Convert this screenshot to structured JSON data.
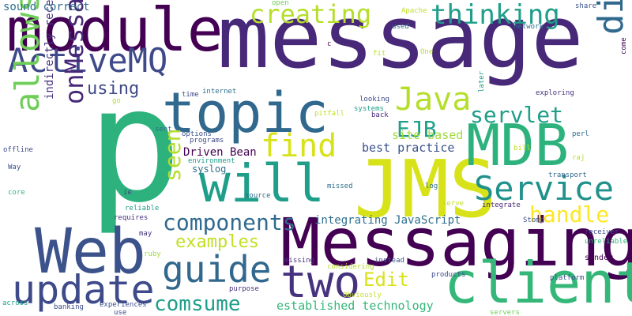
{
  "words": [
    {
      "text": "message",
      "color": "#482878"
    },
    {
      "text": "p",
      "color": "#2db27d"
    },
    {
      "text": "JMS",
      "color": "#d8e219"
    },
    {
      "text": "Messaging",
      "color": "#440154"
    },
    {
      "text": "module",
      "color": "#440154"
    },
    {
      "text": "Web",
      "color": "#3b528b"
    },
    {
      "text": "topic",
      "color": "#31688e"
    },
    {
      "text": "will",
      "color": "#1f9e89"
    },
    {
      "text": "client",
      "color": "#35b779"
    },
    {
      "text": "MDB",
      "color": "#2db27d"
    },
    {
      "text": "ActiveMQ",
      "color": "#3e4a89"
    },
    {
      "text": "two",
      "color": "#46327e"
    },
    {
      "text": "update",
      "color": "#3e4a89"
    },
    {
      "text": "guide",
      "color": "#31688e"
    },
    {
      "text": "Service",
      "color": "#21918c"
    },
    {
      "text": "directly",
      "color": "#31688e"
    },
    {
      "text": "allows",
      "color": "#6ece58"
    },
    {
      "text": "find",
      "color": "#d8e219"
    },
    {
      "text": "Java",
      "color": "#b5de2b"
    },
    {
      "text": "creating",
      "color": "#b5de2b"
    },
    {
      "text": "thinking",
      "color": "#1f9e89"
    },
    {
      "text": "components",
      "color": "#306a8e"
    },
    {
      "text": "comsume",
      "color": "#1f9e89"
    },
    {
      "text": "onMessage",
      "color": "#482878"
    },
    {
      "text": "EJB",
      "color": "#1f9e89"
    },
    {
      "text": "servlet",
      "color": "#1f9e89"
    },
    {
      "text": "handle",
      "color": "#fde725"
    },
    {
      "text": "seen",
      "color": "#b5de2b"
    },
    {
      "text": "examples",
      "color": "#c2df23"
    },
    {
      "text": "Edit",
      "color": "#d8e219"
    },
    {
      "text": "using",
      "color": "#3e4a89"
    },
    {
      "text": "integrating JavaScript",
      "color": "#2e6f8e"
    },
    {
      "text": "established technology",
      "color": "#35b779"
    },
    {
      "text": "site based",
      "color": "#a0da39"
    },
    {
      "text": "best practice",
      "color": "#3b528b"
    },
    {
      "text": "Driven Bean",
      "color": "#440154"
    },
    {
      "text": "sound correct",
      "color": "#2e6f8e"
    },
    {
      "text": "indirectly receive",
      "color": "#46327e"
    },
    {
      "text": "syslog",
      "color": "#2e6f8e"
    },
    {
      "text": "environment",
      "color": "#1f9e89"
    },
    {
      "text": "options",
      "color": "#3b528b"
    },
    {
      "text": "programs",
      "color": "#3e4a89"
    },
    {
      "text": "internet",
      "color": "#2d708e"
    },
    {
      "text": "time",
      "color": "#3e4a89"
    },
    {
      "text": "open",
      "color": "#6ece58"
    },
    {
      "text": "used",
      "color": "#2e6f8e"
    },
    {
      "text": "Apache",
      "color": "#c2df23"
    },
    {
      "text": "network",
      "color": "#2d708e"
    },
    {
      "text": "share",
      "color": "#3b528b"
    },
    {
      "text": "looking",
      "color": "#3e4a89"
    },
    {
      "text": "systems",
      "color": "#1f9e89"
    },
    {
      "text": "pitfall",
      "color": "#c2df23"
    },
    {
      "text": "back",
      "color": "#482878"
    },
    {
      "text": "exploring",
      "color": "#46327e"
    },
    {
      "text": "perl",
      "color": "#2d708e"
    },
    {
      "text": "raj",
      "color": "#b5de2b"
    },
    {
      "text": "transport",
      "color": "#31688e"
    },
    {
      "text": "bill",
      "color": "#c2df23"
    },
    {
      "text": "log",
      "color": "#2e6f8e"
    },
    {
      "text": "missed",
      "color": "#2e6f8e"
    },
    {
      "text": "source",
      "color": "#2e6f8e"
    },
    {
      "text": "integrate",
      "color": "#482878"
    },
    {
      "text": "Stomp",
      "color": "#3b528b"
    },
    {
      "text": "receiver",
      "color": "#3e4a89"
    },
    {
      "text": "unreliable",
      "color": "#35b779"
    },
    {
      "text": "sender",
      "color": "#440154"
    },
    {
      "text": "missing",
      "color": "#46327e"
    },
    {
      "text": "instead",
      "color": "#3b528b"
    },
    {
      "text": "considering",
      "color": "#b5de2b"
    },
    {
      "text": "products",
      "color": "#3e4a89"
    },
    {
      "text": "platform",
      "color": "#3b528b"
    },
    {
      "text": "purpose",
      "color": "#46327e"
    },
    {
      "text": "Obviously",
      "color": "#c2df23"
    },
    {
      "text": "experiences",
      "color": "#3b528b"
    },
    {
      "text": "use",
      "color": "#3e4a89"
    },
    {
      "text": "servers",
      "color": "#6ece58"
    },
    {
      "text": "banking",
      "color": "#3e4a89"
    },
    {
      "text": "across",
      "color": "#1f9e89"
    },
    {
      "text": "offline",
      "color": "#3e4a89"
    },
    {
      "text": "core",
      "color": "#35b779"
    },
    {
      "text": "Way",
      "color": "#3b528b"
    },
    {
      "text": "reliable",
      "color": "#1f9e89"
    },
    {
      "text": "requires",
      "color": "#46327e"
    },
    {
      "text": "may",
      "color": "#46327e"
    },
    {
      "text": "ruby",
      "color": "#a0da39"
    },
    {
      "text": "sent",
      "color": "#2e6f8e"
    },
    {
      "text": "go",
      "color": "#b5de2b"
    },
    {
      "text": "ie",
      "color": "#3e4a89"
    },
    {
      "text": "fit",
      "color": "#b5de2b"
    },
    {
      "text": "One",
      "color": "#b5de2b"
    },
    {
      "text": "c",
      "color": "#440154"
    },
    {
      "text": "later",
      "color": "#1f9e89"
    },
    {
      "text": "come",
      "color": "#440154"
    },
    {
      "text": "serve",
      "color": "#c2df23"
    }
  ]
}
